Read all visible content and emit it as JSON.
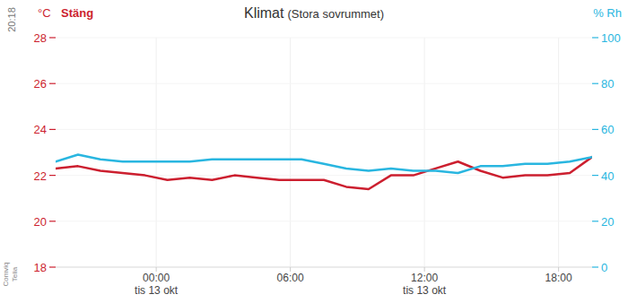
{
  "status_bar": {
    "time": "20:18",
    "carriers": [
      "Comviq",
      "Telia"
    ]
  },
  "chart_data": {
    "type": "line",
    "title": "Klimat",
    "subtitle": "(Stora sovrummet)",
    "button_label": "Stäng",
    "ylabel": "°C",
    "y2label": "% Rh",
    "grid": true,
    "x": [
      -4.5,
      -3.5,
      -2.5,
      -1.5,
      -0.5,
      0.5,
      1.5,
      2.5,
      3.5,
      4.5,
      5.5,
      6.5,
      7.5,
      8.5,
      9.5,
      10.5,
      11.5,
      12.5,
      13.5,
      14.5,
      15.5,
      16.5,
      17.5,
      18.5,
      19.5
    ],
    "xlim": [
      -4.5,
      19.5
    ],
    "xticks": [
      {
        "value": 0,
        "label": "00:00"
      },
      {
        "value": 6,
        "label": "06:00"
      },
      {
        "value": 12,
        "label": "12:00"
      },
      {
        "value": 18,
        "label": "18:00"
      }
    ],
    "xtick_sublabels": [
      {
        "value": 0,
        "label": "tis 13 okt"
      },
      {
        "value": 12,
        "label": "tis 13 okt"
      }
    ],
    "ylim": [
      18,
      28
    ],
    "yticks": [
      18,
      20,
      22,
      24,
      26,
      28
    ],
    "y2lim": [
      0,
      100
    ],
    "y2ticks": [
      0,
      20,
      40,
      60,
      80,
      100
    ],
    "series": [
      {
        "color": "#cc1f2f",
        "values": [
          22.3,
          22.4,
          22.2,
          22.1,
          22.0,
          21.8,
          21.9,
          21.8,
          22.0,
          21.9,
          21.8,
          21.8,
          21.8,
          21.5,
          21.4,
          22.0,
          22.0,
          22.3,
          22.6,
          22.2,
          21.9,
          22.0,
          22.0,
          22.1,
          22.8
        ]
      },
      {
        "color": "#29b6e0",
        "axis": "y2",
        "values": [
          46,
          49,
          47,
          46,
          46,
          46,
          46,
          47,
          47,
          47,
          47,
          47,
          45,
          43,
          42,
          43,
          42,
          42,
          41,
          44,
          44,
          45,
          45,
          46,
          48
        ]
      }
    ]
  }
}
